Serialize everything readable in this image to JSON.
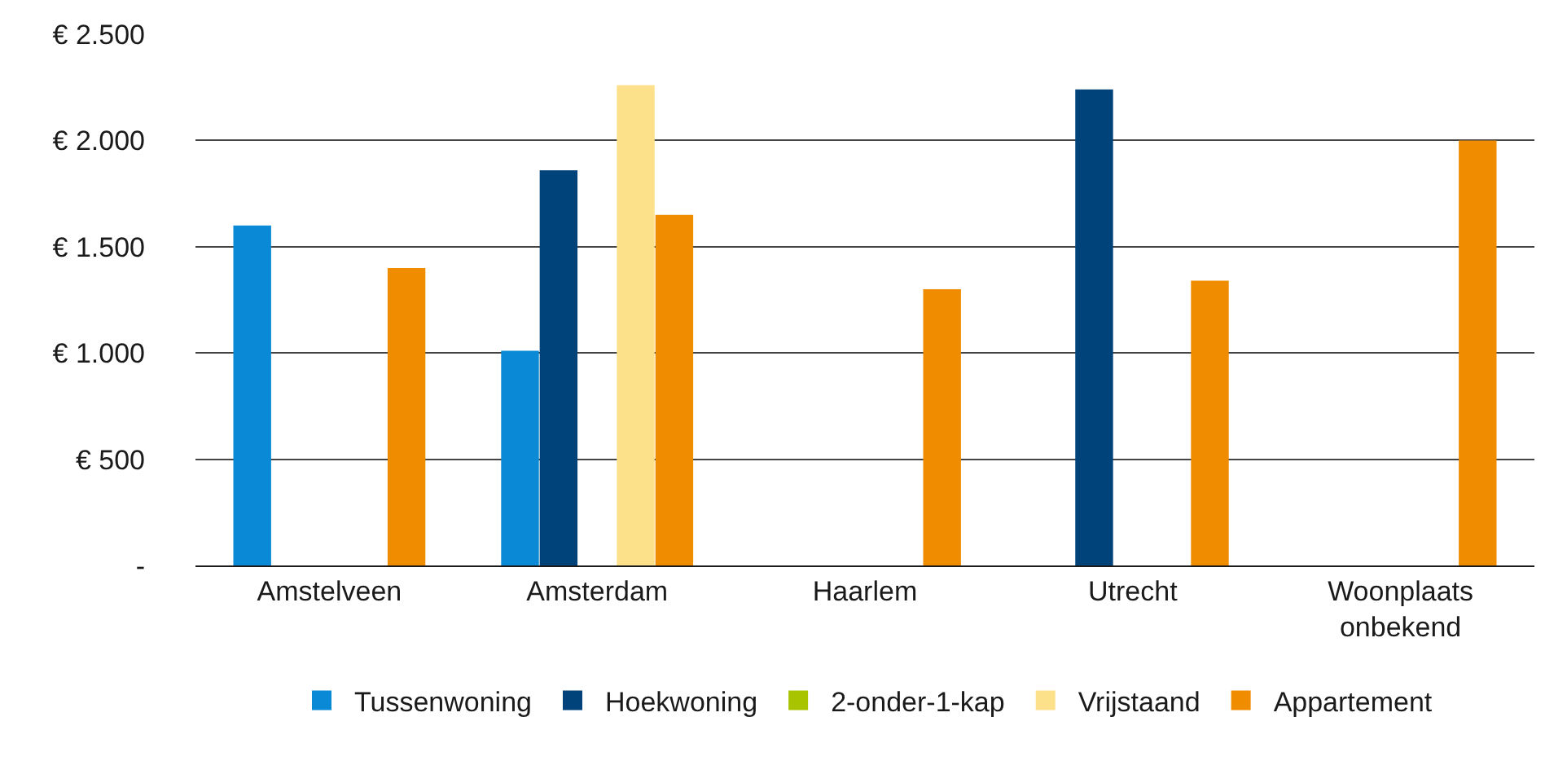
{
  "chart_data": {
    "type": "bar",
    "categories": [
      "Amstelveen",
      "Amsterdam",
      "Haarlem",
      "Utrecht",
      "Woonplaats\nonbekend"
    ],
    "series": [
      {
        "name": "Tussenwoning",
        "color": "#0a8ad6",
        "values": [
          1600,
          1010,
          null,
          null,
          null
        ]
      },
      {
        "name": "Hoekwoning",
        "color": "#00437a",
        "values": [
          null,
          1860,
          null,
          2240,
          null
        ]
      },
      {
        "name": "2-onder-1-kap",
        "color": "#a8c300",
        "values": [
          null,
          null,
          null,
          null,
          null
        ]
      },
      {
        "name": "Vrijstaand",
        "color": "#fde08a",
        "values": [
          null,
          2260,
          null,
          null,
          null
        ]
      },
      {
        "name": "Appartement",
        "color": "#f08c00",
        "values": [
          1400,
          1650,
          1300,
          1340,
          2000
        ]
      }
    ],
    "ylim": [
      0,
      2500
    ],
    "yticks": [
      {
        "value": 0,
        "label": "-"
      },
      {
        "value": 500,
        "label": "€ 500"
      },
      {
        "value": 1000,
        "label": "€ 1.000"
      },
      {
        "value": 1500,
        "label": "€ 1.500"
      },
      {
        "value": 2000,
        "label": "€ 2.000"
      },
      {
        "value": 2500,
        "label": "€ 2.500"
      }
    ],
    "grid": "y",
    "legend": "bottom"
  }
}
